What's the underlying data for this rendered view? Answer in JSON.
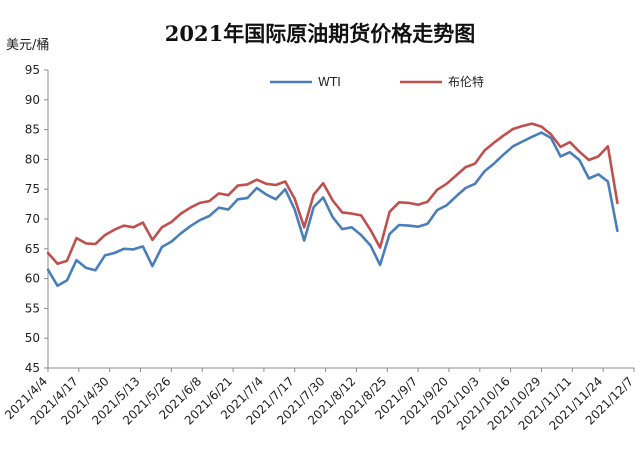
{
  "chart_data": {
    "type": "line",
    "title": "2021年国际原油期货价格走势图",
    "ylabel": "美元/桶",
    "ylim": [
      45,
      95
    ],
    "yticks": [
      45,
      50,
      55,
      60,
      65,
      70,
      75,
      80,
      85,
      90,
      95
    ],
    "grid": false,
    "legend_position": "top-center",
    "x_tick_labels": [
      "2021/4/4",
      "2021/4/17",
      "2021/4/30",
      "2021/5/13",
      "2021/5/26",
      "2021/6/8",
      "2021/6/21",
      "2021/7/4",
      "2021/7/17",
      "2021/7/30",
      "2021/8/12",
      "2021/8/25",
      "2021/9/7",
      "2021/9/20",
      "2021/10/3",
      "2021/10/16",
      "2021/10/29",
      "2021/11/11",
      "2021/11/24",
      "2021/12/7"
    ],
    "x": [
      "2021-04-04",
      "2021-04-08",
      "2021-04-12",
      "2021-04-16",
      "2021-04-20",
      "2021-04-24",
      "2021-04-28",
      "2021-05-02",
      "2021-05-06",
      "2021-05-10",
      "2021-05-14",
      "2021-05-18",
      "2021-05-22",
      "2021-05-26",
      "2021-05-30",
      "2021-06-03",
      "2021-06-07",
      "2021-06-11",
      "2021-06-15",
      "2021-06-19",
      "2021-06-23",
      "2021-06-27",
      "2021-07-01",
      "2021-07-05",
      "2021-07-09",
      "2021-07-13",
      "2021-07-17",
      "2021-07-21",
      "2021-07-25",
      "2021-07-29",
      "2021-08-02",
      "2021-08-06",
      "2021-08-10",
      "2021-08-14",
      "2021-08-18",
      "2021-08-22",
      "2021-08-26",
      "2021-08-30",
      "2021-09-03",
      "2021-09-07",
      "2021-09-11",
      "2021-09-15",
      "2021-09-19",
      "2021-09-23",
      "2021-09-27",
      "2021-10-01",
      "2021-10-05",
      "2021-10-09",
      "2021-10-13",
      "2021-10-17",
      "2021-10-21",
      "2021-10-25",
      "2021-10-29",
      "2021-11-02",
      "2021-11-06",
      "2021-11-10",
      "2021-11-14",
      "2021-11-18",
      "2021-11-22",
      "2021-11-26",
      "2021-11-30"
    ],
    "series": [
      {
        "name": "WTI",
        "color": "#4a7ebb",
        "values": [
          61.5,
          58.8,
          59.7,
          63.1,
          61.8,
          61.4,
          63.9,
          64.3,
          65.0,
          64.9,
          65.4,
          62.1,
          65.3,
          66.2,
          67.6,
          68.8,
          69.8,
          70.5,
          71.9,
          71.6,
          73.3,
          73.5,
          75.2,
          74.1,
          73.3,
          75.0,
          71.6,
          66.4,
          72.0,
          73.6,
          70.3,
          68.3,
          68.6,
          67.3,
          65.5,
          62.3,
          67.5,
          69.0,
          68.9,
          68.7,
          69.2,
          71.5,
          72.3,
          73.8,
          75.2,
          75.9,
          78.0,
          79.3,
          80.8,
          82.2,
          83.0,
          83.8,
          84.5,
          83.6,
          80.5,
          81.2,
          79.9,
          76.8,
          77.5,
          76.3,
          68.0
        ]
      },
      {
        "name": "布伦特",
        "color": "#c0504d",
        "values": [
          64.3,
          62.5,
          63.0,
          66.8,
          65.9,
          65.8,
          67.3,
          68.2,
          68.9,
          68.6,
          69.4,
          66.5,
          68.6,
          69.5,
          70.9,
          71.9,
          72.7,
          73.0,
          74.3,
          74.0,
          75.6,
          75.8,
          76.6,
          75.9,
          75.7,
          76.3,
          73.4,
          68.6,
          74.1,
          76.0,
          73.1,
          71.1,
          70.9,
          70.6,
          68.1,
          65.2,
          71.2,
          72.8,
          72.7,
          72.4,
          72.9,
          74.9,
          75.9,
          77.3,
          78.7,
          79.3,
          81.5,
          82.8,
          84.0,
          85.1,
          85.6,
          86.0,
          85.5,
          84.2,
          82.1,
          82.9,
          81.3,
          79.9,
          80.5,
          82.2,
          72.7
        ]
      }
    ]
  }
}
